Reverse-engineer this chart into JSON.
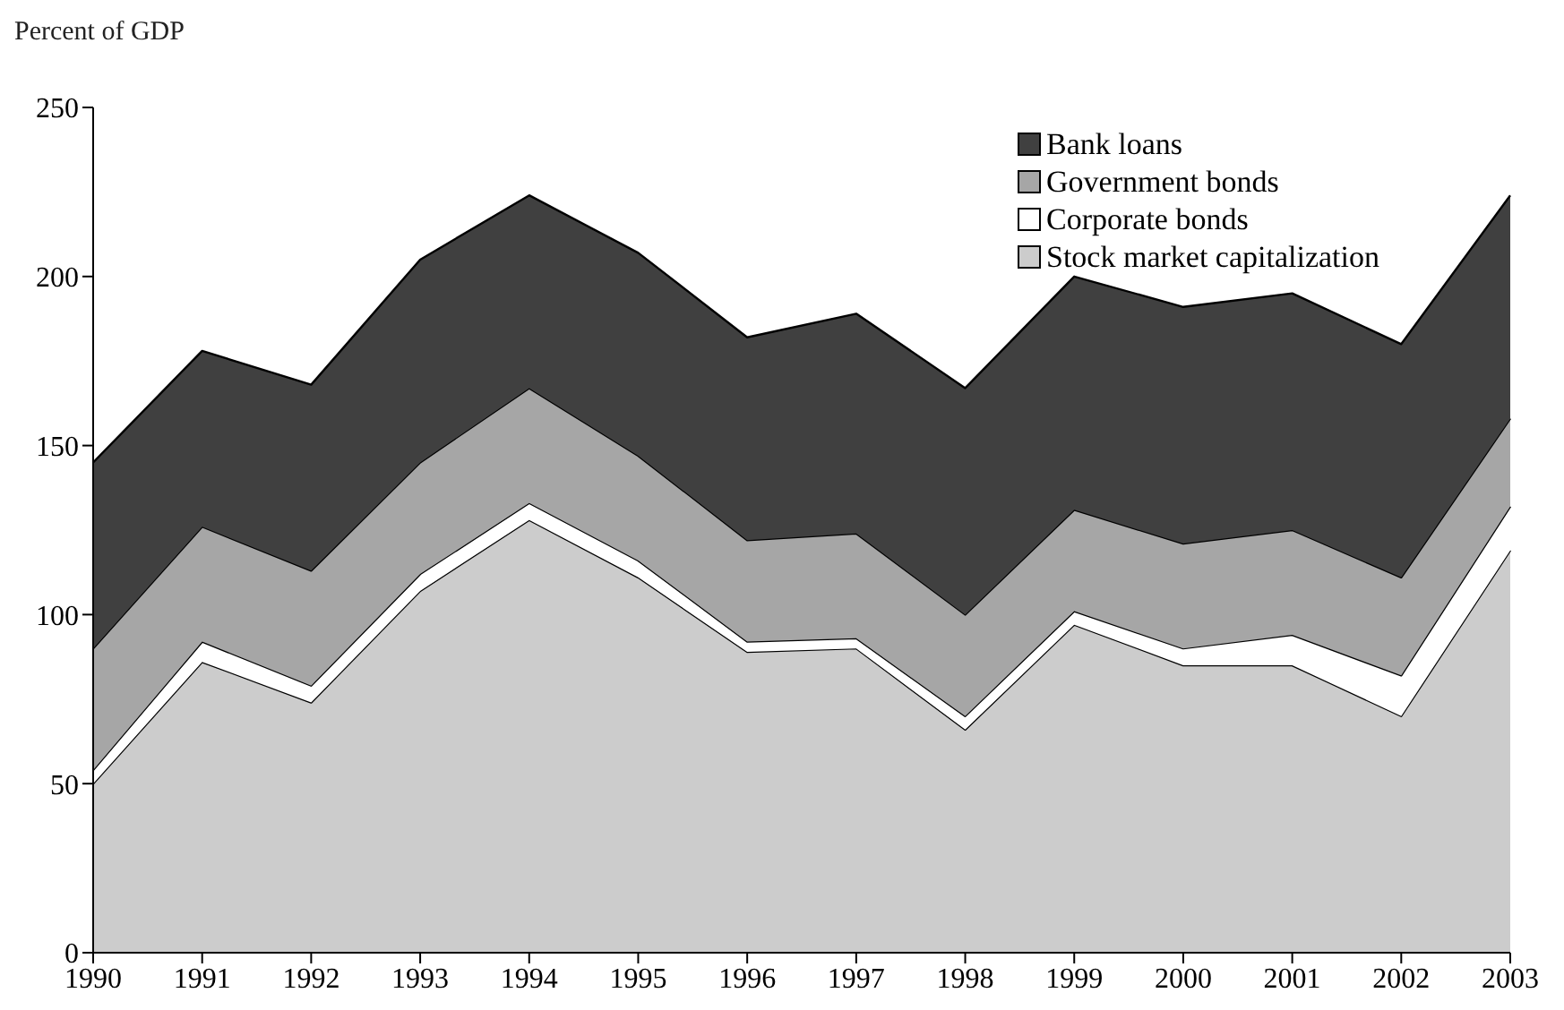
{
  "chart_data": {
    "type": "area",
    "ylabel": "Percent of GDP",
    "stacked": true,
    "categories": [
      "1990",
      "1991",
      "1992",
      "1993",
      "1994",
      "1995",
      "1996",
      "1997",
      "1998",
      "1999",
      "2000",
      "2001",
      "2002",
      "2003"
    ],
    "series": [
      {
        "name": "Stock market capitalization",
        "color": "#cccccc",
        "values": [
          50,
          86,
          74,
          107,
          128,
          111,
          89,
          90,
          66,
          97,
          85,
          85,
          70,
          119
        ]
      },
      {
        "name": "Corporate bonds",
        "color": "#ffffff",
        "values": [
          4,
          6,
          5,
          5,
          5,
          5,
          3,
          3,
          4,
          4,
          5,
          9,
          12,
          13
        ]
      },
      {
        "name": "Government bonds",
        "color": "#a6a6a6",
        "values": [
          36,
          34,
          34,
          33,
          34,
          31,
          30,
          31,
          30,
          30,
          31,
          31,
          29,
          26
        ]
      },
      {
        "name": "Bank loans",
        "color": "#404040",
        "values": [
          55,
          52,
          55,
          60,
          57,
          60,
          60,
          65,
          67,
          69,
          70,
          70,
          69,
          66
        ]
      }
    ],
    "ylim": [
      0,
      250
    ],
    "yticks": [
      0,
      50,
      100,
      150,
      200,
      250
    ],
    "grid": false,
    "legend": "top right"
  }
}
